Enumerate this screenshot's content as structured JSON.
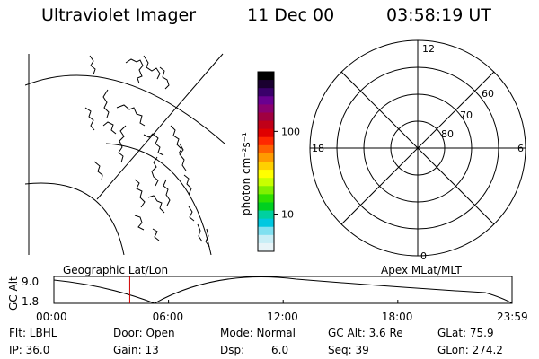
{
  "header": {
    "title": "Ultraviolet Imager",
    "date": "11 Dec 00",
    "time": "03:58:19 UT"
  },
  "geo_map": {
    "label": "Geographic Lat/Lon"
  },
  "colorbar": {
    "unit": "photon cm⁻²s⁻¹",
    "ticks": [
      {
        "label": "100",
        "value": 100
      },
      {
        "label": "10",
        "value": 10
      }
    ],
    "colors": [
      "#000000",
      "#1a0030",
      "#3a006a",
      "#6a0090",
      "#8a0070",
      "#a00040",
      "#c00018",
      "#e00000",
      "#ff2800",
      "#ff6000",
      "#ff9a00",
      "#ffd000",
      "#ffff00",
      "#c8ff00",
      "#80f000",
      "#30e000",
      "#00d020",
      "#00d0a0",
      "#00c8e0",
      "#80e0f0",
      "#c8eef6",
      "#e8f4f8"
    ]
  },
  "polar_plot": {
    "label": "Apex MLat/MLT",
    "mlt_labels": {
      "top": "12",
      "left": "18",
      "right": "6",
      "bottom": "0"
    },
    "lat_rings": [
      "60",
      "70",
      "80"
    ]
  },
  "altitude_plot": {
    "ylabel": "GC Alt",
    "yticks": [
      "9.0",
      "1.8"
    ],
    "xticks": [
      "00:00",
      "06:00",
      "12:00",
      "18:00",
      "23:59"
    ],
    "marker_time_hours": 3.97
  },
  "footer": {
    "flt": "Flt: LBHL",
    "ip": "IP: 36.0",
    "door": "Door: Open",
    "gain": "Gain: 13",
    "mode": "Mode: Normal",
    "dsp_label": "Dsp:",
    "dsp_value": "6.0",
    "gc_alt": "GC Alt: 3.6 Re",
    "seq": "Seq: 39",
    "glat": "GLat:  75.9",
    "glon": "GLon: 274.2"
  }
}
